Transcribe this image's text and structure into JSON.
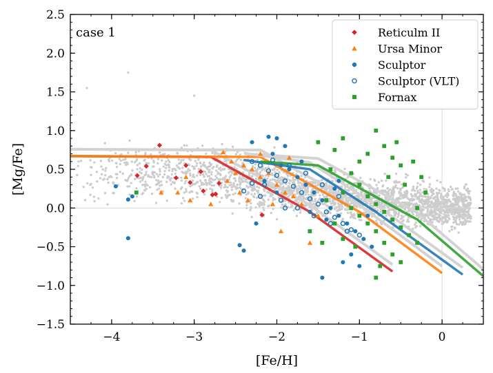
{
  "chart_data": {
    "type": "scatter",
    "xlabel": "[Fe/H]",
    "ylabel": "[Mg/Fe]",
    "xlim": [
      -4.5,
      0.5
    ],
    "ylim": [
      -1.5,
      2.5
    ],
    "xticks": [
      -4,
      -3,
      -2,
      -1,
      0
    ],
    "xtick_labels": [
      "−4",
      "−3",
      "−2",
      "−1",
      "0"
    ],
    "yticks": [
      -1.5,
      -1.0,
      -0.5,
      0.0,
      0.5,
      1.0,
      1.5,
      2.0,
      2.5
    ],
    "ytick_labels": [
      "−1.5",
      "−1.0",
      "−0.5",
      "0.0",
      "0.5",
      "1.0",
      "1.5",
      "2.0",
      "2.5"
    ],
    "reference_lines": {
      "x": 0,
      "y": 0,
      "color": "#d9d9d9"
    },
    "annotation": "case 1",
    "legend_position": "top-right",
    "legend": [
      {
        "label": "Reticulm II",
        "marker": "diamond",
        "color": "#d62728"
      },
      {
        "label": "Ursa Minor",
        "marker": "triangle",
        "color": "#ff7f0e"
      },
      {
        "label": "Sculptor",
        "marker": "circle",
        "color": "#1f77b4"
      },
      {
        "label": "Sculptor (VLT)",
        "marker": "open-circle",
        "color": "#1f77b4"
      },
      {
        "label": "Fornax",
        "marker": "square",
        "color": "#2ca02c"
      }
    ],
    "background_cloud": {
      "color": "#cccccc",
      "description_points": [
        [
          -4.4,
          0.6
        ],
        [
          -4.0,
          0.4
        ],
        [
          -3.5,
          0.45
        ],
        [
          -3.0,
          0.4
        ],
        [
          -2.5,
          0.35
        ],
        [
          -2.0,
          0.35
        ],
        [
          -1.5,
          0.2
        ],
        [
          -1.0,
          0.1
        ],
        [
          -0.5,
          0.05
        ],
        [
          0.0,
          0.0
        ],
        [
          0.3,
          0.0
        ],
        [
          -3.8,
          1.75
        ],
        [
          -4.3,
          1.55
        ],
        [
          -3.0,
          1.45
        ]
      ]
    },
    "model_tracks": [
      {
        "color": "#d62728",
        "x": [
          -4.5,
          -2.8,
          -1.6,
          -0.6
        ],
        "y": [
          0.67,
          0.66,
          -0.05,
          -0.82
        ]
      },
      {
        "color": "#ff7f0e",
        "x": [
          -4.5,
          -2.2,
          -1.0,
          0.0
        ],
        "y": [
          0.67,
          0.66,
          -0.05,
          -0.84
        ]
      },
      {
        "color": "#1f77b4",
        "x": [
          -2.4,
          -1.6,
          -0.8,
          0.25
        ],
        "y": [
          0.62,
          0.5,
          -0.05,
          -0.86
        ]
      },
      {
        "color": "#2ca02c",
        "x": [
          -2.2,
          -1.5,
          -0.3,
          0.5
        ],
        "y": [
          0.6,
          0.55,
          -0.15,
          -0.88
        ]
      }
    ],
    "series": [
      {
        "name": "Reticulm II",
        "marker": "diamond",
        "color": "#d62728",
        "points": [
          [
            -3.42,
            0.81
          ],
          [
            -3.58,
            0.54
          ],
          [
            -3.69,
            0.42
          ],
          [
            -2.92,
            0.47
          ],
          [
            -3.05,
            0.33
          ],
          [
            -2.89,
            0.22
          ],
          [
            -2.74,
            0.18
          ],
          [
            -2.78,
            0.17
          ],
          [
            -3.22,
            0.39
          ],
          [
            -2.18,
            -0.09
          ],
          [
            -3.1,
            0.55
          ],
          [
            -2.7,
            0.32
          ]
        ]
      },
      {
        "name": "Ursa Minor",
        "marker": "triangle",
        "color": "#ff7f0e",
        "points": [
          [
            -2.65,
            0.72
          ],
          [
            -2.55,
            0.6
          ],
          [
            -2.4,
            0.55
          ],
          [
            -2.3,
            0.5
          ],
          [
            -2.2,
            0.4
          ],
          [
            -2.1,
            0.45
          ],
          [
            -2.0,
            0.3
          ],
          [
            -1.9,
            0.2
          ],
          [
            -1.8,
            0.15
          ],
          [
            -1.7,
            0.05
          ],
          [
            -2.45,
            0.2
          ],
          [
            -2.6,
            0.35
          ],
          [
            -3.1,
            0.4
          ],
          [
            -3.2,
            0.2
          ],
          [
            -3.4,
            0.2
          ],
          [
            -2.8,
            0.05
          ],
          [
            -1.95,
            -0.3
          ],
          [
            -1.6,
            -0.45
          ],
          [
            -2.2,
            0.7
          ],
          [
            -1.85,
            0.65
          ],
          [
            -2.35,
            0.1
          ],
          [
            -1.5,
            -0.1
          ],
          [
            -2.05,
            0.05
          ],
          [
            -3.05,
            0.1
          ],
          [
            -2.5,
            0.45
          ]
        ]
      },
      {
        "name": "Sculptor",
        "marker": "circle",
        "color": "#1f77b4",
        "points": [
          [
            -3.75,
            0.15
          ],
          [
            -3.8,
            -0.39
          ],
          [
            -3.95,
            0.28
          ],
          [
            -3.8,
            0.11
          ],
          [
            -2.45,
            -0.48
          ],
          [
            -2.3,
            0.85
          ],
          [
            -2.1,
            0.92
          ],
          [
            -2.0,
            0.9
          ],
          [
            -1.9,
            0.8
          ],
          [
            -2.05,
            0.7
          ],
          [
            -1.95,
            0.55
          ],
          [
            -1.85,
            0.5
          ],
          [
            -1.75,
            0.4
          ],
          [
            -1.65,
            0.3
          ],
          [
            -1.55,
            0.2
          ],
          [
            -1.45,
            0.1
          ],
          [
            -1.35,
            0.0
          ],
          [
            -1.25,
            -0.1
          ],
          [
            -1.15,
            -0.2
          ],
          [
            -1.05,
            -0.3
          ],
          [
            -0.95,
            -0.4
          ],
          [
            -0.85,
            -0.5
          ],
          [
            -1.1,
            -0.6
          ],
          [
            -1.2,
            -0.7
          ],
          [
            -1.0,
            -0.75
          ],
          [
            -1.45,
            -0.9
          ],
          [
            -2.25,
            -0.2
          ],
          [
            -2.4,
            -0.55
          ],
          [
            -1.3,
            0.25
          ],
          [
            -1.4,
            -0.15
          ],
          [
            -1.6,
            -0.05
          ],
          [
            -2.15,
            0.35
          ],
          [
            -0.9,
            -0.1
          ],
          [
            -1.7,
            0.6
          ],
          [
            -2.0,
            0.2
          ],
          [
            -1.25,
            0.35
          ]
        ]
      },
      {
        "name": "Sculptor (VLT)",
        "marker": "open-circle",
        "color": "#1f77b4",
        "points": [
          [
            -2.3,
            0.6
          ],
          [
            -2.2,
            0.55
          ],
          [
            -2.1,
            0.48
          ],
          [
            -2.0,
            0.42
          ],
          [
            -1.9,
            0.35
          ],
          [
            -1.8,
            0.28
          ],
          [
            -1.7,
            0.2
          ],
          [
            -1.6,
            0.12
          ],
          [
            -1.5,
            0.05
          ],
          [
            -1.4,
            -0.05
          ],
          [
            -1.3,
            -0.12
          ],
          [
            -1.2,
            -0.2
          ],
          [
            -1.1,
            -0.28
          ],
          [
            -1.0,
            -0.35
          ],
          [
            -2.4,
            0.22
          ],
          [
            -2.2,
            0.15
          ],
          [
            -1.95,
            0.1
          ],
          [
            -1.75,
            0.0
          ],
          [
            -1.55,
            -0.1
          ],
          [
            -1.35,
            -0.2
          ],
          [
            -1.15,
            -0.3
          ],
          [
            -2.05,
            0.62
          ],
          [
            -1.85,
            0.55
          ],
          [
            -2.15,
            0.3
          ],
          [
            -1.65,
            0.45
          ],
          [
            -1.45,
            0.3
          ],
          [
            -1.25,
            0.15
          ],
          [
            -2.3,
            0.32
          ],
          [
            -1.9,
            0.0
          ]
        ]
      },
      {
        "name": "Fornax",
        "marker": "square",
        "color": "#2ca02c",
        "points": [
          [
            -3.7,
            0.2
          ],
          [
            -1.5,
            0.85
          ],
          [
            -1.3,
            0.75
          ],
          [
            -1.2,
            0.9
          ],
          [
            -1.0,
            0.6
          ],
          [
            -0.9,
            0.7
          ],
          [
            -0.8,
            1.0
          ],
          [
            -0.7,
            0.8
          ],
          [
            -0.6,
            0.65
          ],
          [
            -0.5,
            0.55
          ],
          [
            -0.45,
            0.3
          ],
          [
            -1.1,
            0.45
          ],
          [
            -1.0,
            0.3
          ],
          [
            -0.9,
            0.15
          ],
          [
            -0.8,
            0.05
          ],
          [
            -0.7,
            -0.05
          ],
          [
            -0.6,
            -0.15
          ],
          [
            -0.5,
            -0.25
          ],
          [
            -0.4,
            -0.35
          ],
          [
            -0.3,
            -0.45
          ],
          [
            -1.2,
            0.2
          ],
          [
            -1.1,
            0.0
          ],
          [
            -1.0,
            -0.1
          ],
          [
            -0.9,
            -0.2
          ],
          [
            -0.8,
            -0.3
          ],
          [
            -0.7,
            -0.45
          ],
          [
            -0.6,
            -0.6
          ],
          [
            -0.75,
            -0.75
          ],
          [
            -0.8,
            -0.9
          ],
          [
            -0.5,
            -0.7
          ],
          [
            -1.3,
            -0.2
          ],
          [
            -1.2,
            -0.4
          ],
          [
            -1.05,
            -0.5
          ],
          [
            -1.4,
            0.1
          ],
          [
            -0.35,
            0.6
          ],
          [
            -0.2,
            0.2
          ],
          [
            -0.3,
            0.0
          ],
          [
            -0.55,
            0.85
          ],
          [
            -1.35,
            0.5
          ],
          [
            -0.65,
            0.4
          ],
          [
            -0.25,
            0.4
          ],
          [
            -1.6,
            -0.3
          ],
          [
            -1.45,
            -0.45
          ]
        ]
      }
    ]
  }
}
